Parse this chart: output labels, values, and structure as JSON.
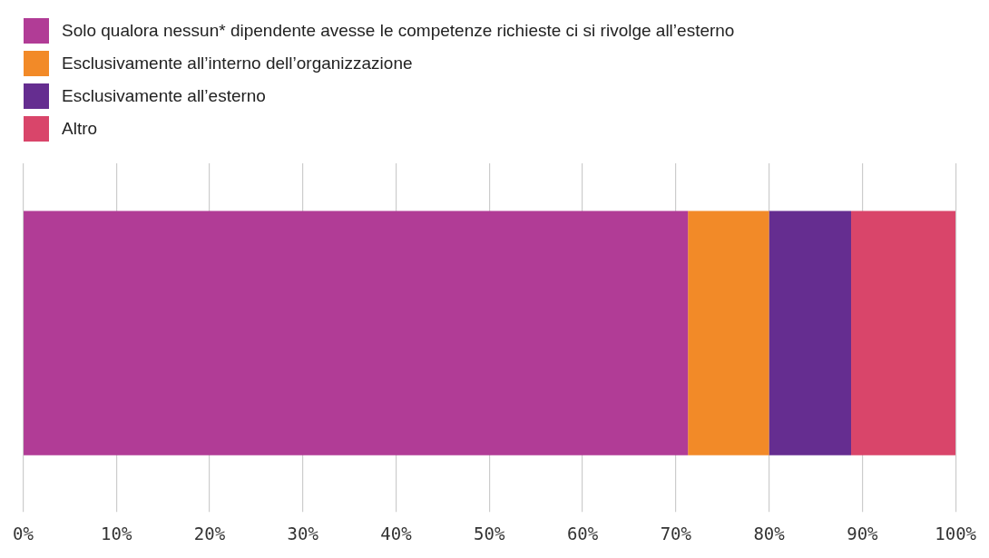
{
  "chart_data": {
    "type": "bar",
    "orientation": "horizontal",
    "stacked": true,
    "categories": [
      null
    ],
    "series": [
      {
        "name": "Solo qualora nessun* dipendente avesse le competenze richieste ci si rivolge all’esterno",
        "color": "#b13c96",
        "values": [
          71.3
        ]
      },
      {
        "name": "Esclusivamente all’interno dell’organizzazione",
        "color": "#f28a28",
        "values": [
          8.7
        ]
      },
      {
        "name": "Esclusivamente all’esterno",
        "color": "#652d90",
        "values": [
          8.8
        ]
      },
      {
        "name": "Altro",
        "color": "#d9456a",
        "values": [
          11.2
        ]
      }
    ],
    "xlim": [
      0,
      100
    ],
    "xticks": [
      {
        "value": 0,
        "label": "0%"
      },
      {
        "value": 10,
        "label": "10%"
      },
      {
        "value": 20,
        "label": "20%"
      },
      {
        "value": 30,
        "label": "30%"
      },
      {
        "value": 40,
        "label": "40%"
      },
      {
        "value": 50,
        "label": "50%"
      },
      {
        "value": 60,
        "label": "60%"
      },
      {
        "value": 70,
        "label": "70%"
      },
      {
        "value": 80,
        "label": "80%"
      },
      {
        "value": 90,
        "label": "90%"
      },
      {
        "value": 100,
        "label": "100%"
      }
    ],
    "grid": "x",
    "legend": "top left"
  }
}
